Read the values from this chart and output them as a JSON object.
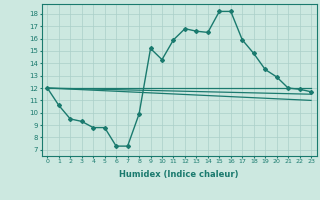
{
  "title": "",
  "xlabel": "Humidex (Indice chaleur)",
  "xlim": [
    -0.5,
    23.5
  ],
  "ylim": [
    6.5,
    18.8
  ],
  "yticks": [
    7,
    8,
    9,
    10,
    11,
    12,
    13,
    14,
    15,
    16,
    17,
    18
  ],
  "xticks": [
    0,
    1,
    2,
    3,
    4,
    5,
    6,
    7,
    8,
    9,
    10,
    11,
    12,
    13,
    14,
    15,
    16,
    17,
    18,
    19,
    20,
    21,
    22,
    23
  ],
  "bg_color": "#cce8e0",
  "line_color": "#1a7a6e",
  "grid_color": "#aacfc8",
  "lines": [
    {
      "x": [
        0,
        1,
        2,
        3,
        4,
        5,
        6,
        7,
        8,
        9,
        10,
        11,
        12,
        13,
        14,
        15,
        16,
        17,
        18,
        19,
        20,
        21,
        22,
        23
      ],
      "y": [
        12,
        10.6,
        9.5,
        9.3,
        8.8,
        8.8,
        7.3,
        7.3,
        9.9,
        15.2,
        14.3,
        15.9,
        16.8,
        16.6,
        16.5,
        18.2,
        18.2,
        15.9,
        14.8,
        13.5,
        12.9,
        12.0,
        11.9,
        11.7
      ],
      "marker": true
    },
    {
      "x": [
        0,
        23
      ],
      "y": [
        12,
        12
      ],
      "marker": false
    },
    {
      "x": [
        0,
        23
      ],
      "y": [
        12,
        11.5
      ],
      "marker": false
    },
    {
      "x": [
        0,
        23
      ],
      "y": [
        12,
        11.0
      ],
      "marker": false
    }
  ]
}
